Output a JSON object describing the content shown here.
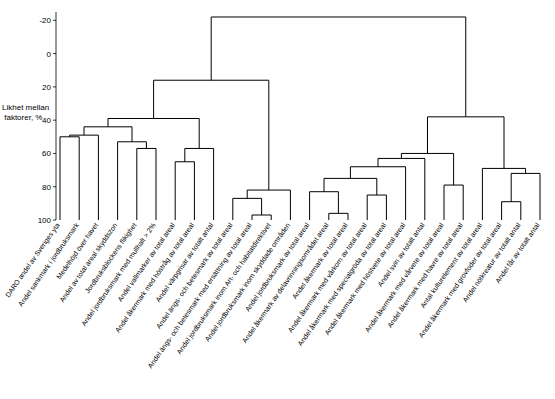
{
  "chart_data": {
    "type": "dendrogram",
    "y_label": "Likhet mellan faktorer, %",
    "ylim": [
      -25,
      100
    ],
    "yticks": [
      -20,
      0,
      20,
      40,
      60,
      80,
      100
    ],
    "color": "#000000",
    "leaves": [
      "DARO andel av Sveriges yta",
      "Andel sankmark i jordbruksmark",
      "Medelhöjd över havet",
      "Andel av total areal skyddszon",
      "Jordbruksblockens flikighet",
      "Andel jordbruksmark med mullhalt > 2%",
      "Andel vallmarker av total areal",
      "Andel åkermark med höstråg av total areal",
      "Andel värpgrisar av totalt antal",
      "Andel ängs- och betesmark av total areal",
      "Andel ängs- och betesmark med ersättning av total areal",
      "Andel jordbruksmark inom Art- och habitatdirektivet",
      "Andel jordbruksmark inom skyddade områden",
      "Andel jordbruksmark av total areal",
      "Andel åkermark av delavrinningsområdet areal",
      "Andel åkermark av total areal",
      "Andel åkermark med vårkorn av total areal",
      "Andel åkermark med specialgröda av total areal",
      "Andel åkermark med höstvete av total areal",
      "Andel svin av totalt antal",
      "Andel åkermark med vårvete av total areal",
      "Andel åkermark med havre av total areal",
      "Antal kulturelement av total areal",
      "Andel åkermark med grovfoder av total areal",
      "Andel nötkreatur av totalt antal",
      "Andel får av totalt antal"
    ],
    "merges": [
      {
        "left": 0,
        "right": 1,
        "height": 50
      },
      {
        "left": 26,
        "right": 2,
        "height": 49
      },
      {
        "left": 4,
        "right": 5,
        "height": 57
      },
      {
        "left": 3,
        "right": 28,
        "height": 53
      },
      {
        "left": 27,
        "right": 29,
        "height": 44
      },
      {
        "left": 6,
        "right": 7,
        "height": 65
      },
      {
        "left": 31,
        "right": 8,
        "height": 57
      },
      {
        "left": 30,
        "right": 32,
        "height": 39
      },
      {
        "left": 10,
        "right": 11,
        "height": 97
      },
      {
        "left": 9,
        "right": 34,
        "height": 87
      },
      {
        "left": 35,
        "right": 12,
        "height": 82
      },
      {
        "left": 33,
        "right": 36,
        "height": 16
      },
      {
        "left": 14,
        "right": 15,
        "height": 96
      },
      {
        "left": 13,
        "right": 38,
        "height": 83
      },
      {
        "left": 16,
        "right": 17,
        "height": 85
      },
      {
        "left": 39,
        "right": 40,
        "height": 75
      },
      {
        "left": 41,
        "right": 18,
        "height": 68
      },
      {
        "left": 42,
        "right": 19,
        "height": 63
      },
      {
        "left": 20,
        "right": 21,
        "height": 79
      },
      {
        "left": 43,
        "right": 44,
        "height": 60
      },
      {
        "left": 23,
        "right": 24,
        "height": 89
      },
      {
        "left": 46,
        "right": 25,
        "height": 72
      },
      {
        "left": 22,
        "right": 47,
        "height": 69
      },
      {
        "left": 45,
        "right": 48,
        "height": 38
      },
      {
        "left": 37,
        "right": 49,
        "height": -22
      }
    ]
  }
}
